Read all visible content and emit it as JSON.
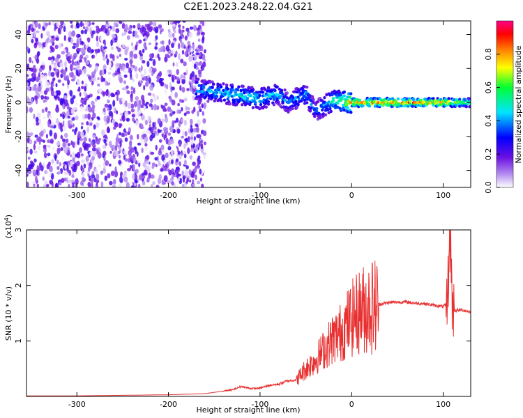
{
  "title": "C2E1.2023.248.22.04.G21",
  "chart_data": [
    {
      "type": "heatmap",
      "xlabel": "Height of straight line (km)",
      "ylabel": "Frequency (Hz)",
      "xlim": [
        -355,
        130
      ],
      "ylim": [
        -50,
        48
      ],
      "x_ticks": [
        -300,
        -200,
        -100,
        0,
        100
      ],
      "x_tick_labels": [
        "-300",
        "-200",
        "-100",
        "0",
        "100"
      ],
      "y_ticks": [
        -40,
        -20,
        0,
        20,
        40
      ],
      "y_tick_labels": [
        "-40",
        "-20",
        "0",
        "20",
        "40"
      ],
      "noise_region_x": [
        -355,
        -160
      ],
      "ridge": [
        {
          "x": -170,
          "y": 8,
          "amp": 0.45
        },
        {
          "x": -150,
          "y": 6,
          "amp": 0.45
        },
        {
          "x": -120,
          "y": 4,
          "amp": 0.5
        },
        {
          "x": -100,
          "y": 2,
          "amp": 0.5
        },
        {
          "x": -80,
          "y": 5,
          "amp": 0.45
        },
        {
          "x": -70,
          "y": 0,
          "amp": 0.4
        },
        {
          "x": -50,
          "y": 5,
          "amp": 0.45
        },
        {
          "x": -40,
          "y": -5,
          "amp": 0.35
        },
        {
          "x": -20,
          "y": 1,
          "amp": 0.55
        },
        {
          "x": 0,
          "y": 0,
          "amp": 0.85
        },
        {
          "x": 50,
          "y": 0,
          "amp": 0.9
        },
        {
          "x": 100,
          "y": 0,
          "amp": 0.85
        },
        {
          "x": 130,
          "y": 0,
          "amp": 0.6
        }
      ],
      "colorbar": {
        "label": "Normalized spectral amplitude",
        "ticks": [
          0.0,
          0.2,
          0.4,
          0.6,
          0.8
        ],
        "tick_labels": [
          "0.0",
          "0.2",
          "0.4",
          "0.6",
          "0.8"
        ],
        "range": [
          0.0,
          1.0
        ],
        "colormap": [
          "#ffffff",
          "#7a1fd6",
          "#0000ff",
          "#00e5ff",
          "#00ff33",
          "#ffff00",
          "#ff8800",
          "#ff0000",
          "#ff0088"
        ]
      }
    },
    {
      "type": "line",
      "xlabel": "Height of straight line (km)",
      "ylabel": "SNR (10 * v/v)",
      "y_multiplier_label": "(x10",
      "y_multiplier_exp": "4",
      "xlim": [
        -355,
        130
      ],
      "ylim": [
        0,
        3
      ],
      "x_ticks": [
        -300,
        -200,
        -100,
        0,
        100
      ],
      "x_tick_labels": [
        "-300",
        "-200",
        "-100",
        "0",
        "100"
      ],
      "y_ticks": [
        1,
        2,
        3
      ],
      "y_tick_labels": [
        "1",
        "2",
        "3"
      ],
      "color": "#e83030",
      "series": [
        {
          "x": [
            -355,
            -300,
            -250,
            -200,
            -160,
            -130,
            -120,
            -110,
            -100,
            -90,
            -80,
            -70,
            -60,
            -50,
            -40,
            -35,
            -30,
            -25,
            -20,
            -15,
            -10,
            -5,
            0,
            10,
            20,
            30,
            40,
            50,
            60,
            70,
            80,
            90,
            100,
            104,
            106,
            108,
            110,
            115,
            120,
            130
          ],
          "values": [
            0.01,
            0.01,
            0.02,
            0.03,
            0.05,
            0.12,
            0.18,
            0.14,
            0.15,
            0.2,
            0.22,
            0.28,
            0.3,
            0.5,
            0.65,
            0.75,
            0.85,
            0.95,
            1.05,
            1.1,
            1.2,
            1.3,
            1.4,
            1.55,
            1.62,
            1.66,
            1.69,
            1.7,
            1.7,
            1.68,
            1.67,
            1.64,
            1.62,
            1.65,
            2.3,
            3.0,
            1.55,
            1.55,
            1.56,
            1.52
          ]
        }
      ]
    }
  ]
}
